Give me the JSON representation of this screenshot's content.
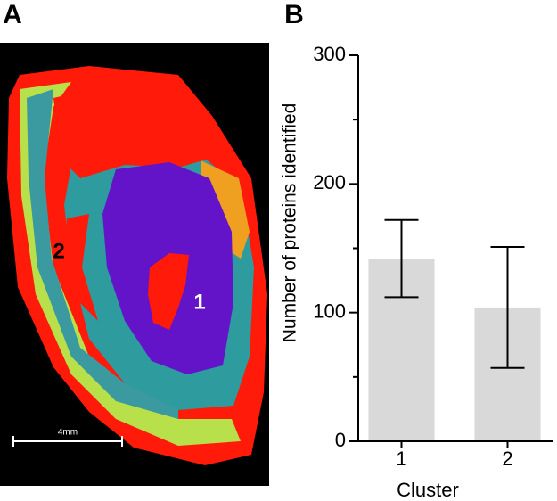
{
  "panel_labels": [
    "A",
    "B"
  ],
  "image": {
    "region_labels": [
      "2",
      "1"
    ],
    "scale_bar": "4mm"
  },
  "chart_data": {
    "type": "bar",
    "ylabel": "Number of proteins identified",
    "xlabel": "Cluster",
    "categories": [
      "1",
      "2"
    ],
    "values": [
      142,
      104
    ],
    "errors": [
      30,
      47
    ],
    "color": "#d9d9d9",
    "ylim": [
      0,
      300
    ],
    "yticks": [
      0,
      100,
      200,
      300
    ],
    "yminorticks": [
      50,
      150,
      250
    ]
  }
}
